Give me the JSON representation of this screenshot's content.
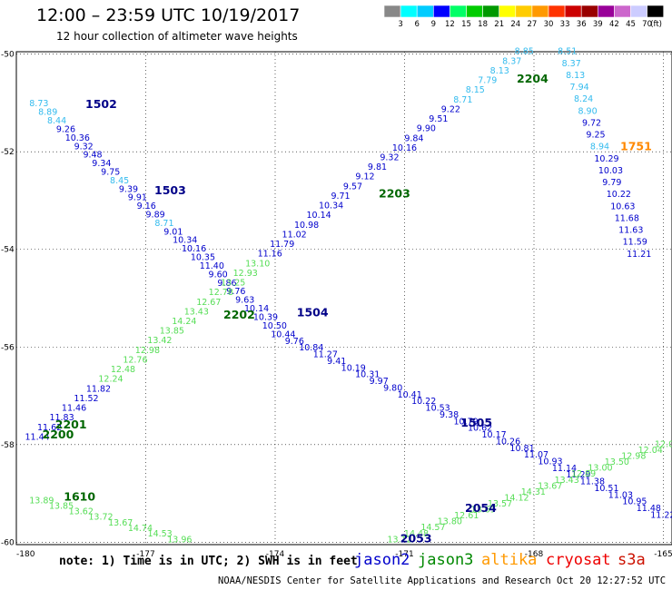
{
  "title": "12:00 – 23:59 UTC 10/19/2017",
  "subtitle": "12 hour collection of altimeter wave heights",
  "note": "note:  1) Time is in UTC; 2) SWH is in feet",
  "credit": "NOAA/NESDIS Center for Satellite Applications and Research    Oct 20 12:27:52 UTC 2017",
  "satellites": [
    {
      "name": "jason2",
      "color": "#0000cc"
    },
    {
      "name": "jason3",
      "color": "#008800"
    },
    {
      "name": "altika",
      "color": "#ff9900"
    },
    {
      "name": "cryosat",
      "color": "#ee0000"
    },
    {
      "name": "s3a",
      "color": "#cc1100"
    }
  ],
  "colorbar": {
    "unit": "(ft)",
    "colors": [
      "#888888",
      "#00ffff",
      "#00ccff",
      "#0000ff",
      "#00ff66",
      "#00cc00",
      "#009900",
      "#ffff00",
      "#ffcc00",
      "#ff9900",
      "#ff3300",
      "#cc0000",
      "#990000",
      "#990099",
      "#cc66cc",
      "#ccccff",
      "#000000"
    ],
    "labels": [
      "3",
      "6",
      "9",
      "12",
      "15",
      "18",
      "21",
      "24",
      "27",
      "30",
      "33",
      "36",
      "39",
      "42",
      "45",
      "70"
    ]
  },
  "chart_data": {
    "type": "scatter",
    "x_ticks": [
      "-180",
      "-177",
      "-174",
      "-171",
      "-168",
      "-165"
    ],
    "y_ticks": [
      "-50",
      "-52",
      "-54",
      "-56",
      "-58",
      "-60"
    ],
    "xlim": [
      -180,
      -164.8
    ],
    "ylim": [
      -60.05,
      -49.95
    ],
    "tracks": [
      {
        "id": "1502",
        "label_pos": [
          -178.4,
          -51.1
        ],
        "color": "#000088",
        "values": [
          "8.73",
          "8.89",
          "8.44",
          "9.26",
          "10.36",
          "9.32",
          "9.48",
          "9.34",
          "9.75",
          "8.45",
          "9.39",
          "9.91",
          "9.16",
          "9.89",
          "8.71",
          "9.01",
          "10.34",
          "10.16",
          "10.35",
          "11.40",
          "9.60",
          "9.86",
          "9.76",
          "9.63",
          "10.14",
          "10.39",
          "10.50"
        ],
        "start": [
          -179.7,
          -51.07
        ],
        "end": [
          -174.3,
          -55.62
        ]
      },
      {
        "id": "1503",
        "label_pos": [
          -176.8,
          -52.87
        ],
        "color": "#000088",
        "values": []
      },
      {
        "id": "1504",
        "label_pos": [
          -173.5,
          -55.37
        ],
        "color": "#000088",
        "values": [
          "10.44",
          "9.76",
          "10.84",
          "11.27",
          "9.41",
          "10.19",
          "10.31",
          "9.97",
          "9.80",
          "10.41",
          "10.22",
          "10.53",
          "9.38",
          "10.79",
          "10.62",
          "10.17",
          "10.26",
          "10.81",
          "11.07",
          "10.93",
          "11.14",
          "11.29",
          "11.38",
          "10.51",
          "11.03",
          "10.95",
          "11.48",
          "11.22"
        ],
        "start": [
          -174.1,
          -55.8
        ],
        "end": [
          -165.3,
          -59.5
        ]
      },
      {
        "id": "1505",
        "label_pos": [
          -169.7,
          -57.63
        ],
        "color": "#000088",
        "values": []
      },
      {
        "id": "2200",
        "label_pos": [
          -179.4,
          -57.87
        ],
        "color": "#006600",
        "values": [
          "11.44",
          "11.62",
          "11.83",
          "11.46",
          "11.52",
          "11.82",
          "12.24",
          "12.48",
          "12.76",
          "12.98",
          "13.42",
          "13.85",
          "14.24",
          "13.43",
          "12.67",
          "12.78",
          "13.25",
          "12.93",
          "13.10",
          "11.16",
          "11.79",
          "11.02",
          "10.98",
          "10.14",
          "10.34",
          "9.71",
          "9.57",
          "9.12",
          "9.81",
          "9.32",
          "10.16",
          "9.84",
          "9.90",
          "9.51",
          "9.22",
          "8.71",
          "8.15",
          "7.79",
          "8.13",
          "8.37",
          "8.85"
        ],
        "start": [
          -179.8,
          -57.9
        ],
        "end": [
          -168.45,
          -50.0
        ]
      },
      {
        "id": "2201",
        "label_pos": [
          -179.1,
          -57.67
        ],
        "color": "#006600",
        "values": []
      },
      {
        "id": "2202",
        "label_pos": [
          -175.2,
          -55.42
        ],
        "color": "#006600",
        "values": []
      },
      {
        "id": "2203",
        "label_pos": [
          -171.6,
          -52.94
        ],
        "color": "#006600",
        "values": []
      },
      {
        "id": "2204",
        "label_pos": [
          -168.4,
          -50.58
        ],
        "color": "#006600",
        "values": [
          "8.51",
          "8.37",
          "8.13",
          "7.94",
          "8.24",
          "8.90",
          "9.72",
          "9.25",
          "8.94",
          "10.29",
          "10.03",
          "9.79",
          "10.22",
          "10.63",
          "11.68",
          "11.63",
          "11.59",
          "11.21"
        ],
        "start": [
          -167.45,
          -50.0
        ],
        "end": [
          -165.85,
          -54.15
        ]
      },
      {
        "id": "1751",
        "label_pos": [
          -166.0,
          -51.97
        ],
        "color": "#ff8800",
        "values": []
      },
      {
        "id": "1610",
        "label_pos": [
          -178.9,
          -59.15
        ],
        "color": "#006600",
        "values": [
          "13.89",
          "13.85",
          "13.62",
          "13.72",
          "13.67",
          "14.74",
          "14.53",
          "13.96"
        ],
        "start": [
          -179.7,
          -59.2
        ],
        "end": [
          -176.5,
          -60.0
        ]
      },
      {
        "id": "2053",
        "label_pos": [
          -171.1,
          -60.0
        ],
        "color": "#000088",
        "values": [
          "13.12",
          "14.48",
          "14.57",
          "13.80",
          "12.61",
          "13.69",
          "13.57",
          "14.12",
          "14.31",
          "13.67",
          "13.43",
          "12.89",
          "13.00",
          "13.50",
          "12.98",
          "12.04",
          "12.02"
        ],
        "start": [
          -171.4,
          -60.0
        ],
        "end": [
          -165.2,
          -58.05
        ]
      },
      {
        "id": "2054",
        "label_pos": [
          -169.6,
          -59.38
        ],
        "color": "#000088",
        "values": []
      }
    ]
  }
}
